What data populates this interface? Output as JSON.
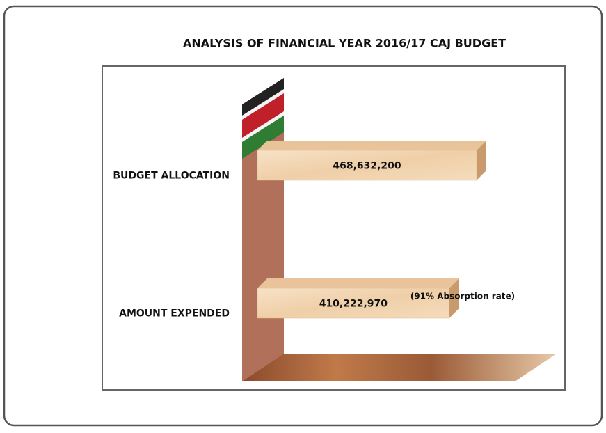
{
  "chart_data": {
    "type": "bar",
    "orientation": "horizontal",
    "title": "ANALYSIS OF FINANCIAL YEAR 2016/17 CAJ  BUDGET",
    "categories": [
      "BUDGET ALLOCATION",
      "AMOUNT EXPENDED"
    ],
    "values": [
      468632200,
      410222970
    ],
    "value_labels": [
      "468,632,200",
      "410,222,970"
    ],
    "annotation": "(91% Absorption rate)",
    "color": "#f1d2ad"
  }
}
